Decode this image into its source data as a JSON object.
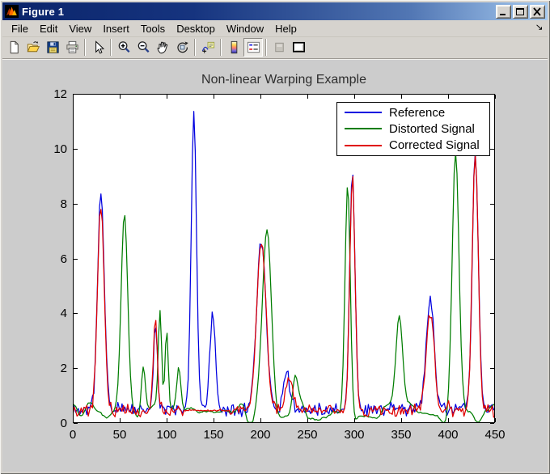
{
  "window": {
    "title": "Figure 1",
    "icon": "matlab-logo-icon",
    "controls": [
      "minimize",
      "maximize",
      "close"
    ]
  },
  "menu_bar": {
    "items": [
      "File",
      "Edit",
      "View",
      "Insert",
      "Tools",
      "Desktop",
      "Window",
      "Help"
    ],
    "corner_arrow": "↘"
  },
  "toolbar": {
    "buttons": [
      {
        "icon": "new-file-icon"
      },
      {
        "icon": "open-file-icon"
      },
      {
        "icon": "save-icon"
      },
      {
        "icon": "print-icon"
      },
      {
        "icon": "pointer-icon"
      },
      {
        "icon": "zoom-in-icon"
      },
      {
        "icon": "zoom-out-icon"
      },
      {
        "icon": "pan-hand-icon"
      },
      {
        "icon": "rotate-3d-icon"
      },
      {
        "icon": "data-cursor-icon"
      },
      {
        "icon": "colorbar-icon"
      },
      {
        "icon": "legend-icon",
        "state": "pressed"
      },
      {
        "icon": "hide-plot-tools-icon",
        "state": "disabled"
      },
      {
        "icon": "dock-figure-icon"
      }
    ]
  },
  "figure": {
    "chart_data": {
      "type": "line",
      "title": "Non-linear Warping Example",
      "xlabel": "",
      "ylabel": "",
      "xlim": [
        0,
        450
      ],
      "ylim": [
        0,
        12
      ],
      "xticks": [
        0,
        50,
        100,
        150,
        200,
        250,
        300,
        350,
        400,
        450
      ],
      "yticks": [
        0,
        2,
        4,
        6,
        8,
        10,
        12
      ],
      "grid": false,
      "background": "#ffffff",
      "legend": {
        "position": "top-right",
        "entries": [
          "Reference",
          "Distorted Signal",
          "Corrected Signal"
        ]
      },
      "peaks_format": "[center_x, apex_y, gaussian_width]",
      "series": [
        {
          "name": "Reference",
          "color": "#0000e0",
          "style": "jagged",
          "baseline": 0.5,
          "noise_amp": 0.28,
          "peaks": [
            [
              30,
              8.4,
              5
            ],
            [
              88,
              3.6,
              3
            ],
            [
              129,
              11.3,
              4
            ],
            [
              149,
              4.05,
              4
            ],
            [
              201,
              6.7,
              7
            ],
            [
              228,
              1.8,
              5
            ],
            [
              298,
              9.1,
              4
            ],
            [
              381,
              4.6,
              6
            ],
            [
              429,
              9.9,
              4.5
            ]
          ]
        },
        {
          "name": "Distorted Signal",
          "color": "#007d00",
          "style": "smooth",
          "baseline": 0.45,
          "noise_amp": 0.3,
          "peaks": [
            [
              55,
              7.8,
              5
            ],
            [
              75,
              2.3,
              3
            ],
            [
              93,
              3.95,
              2.5
            ],
            [
              100,
              3.6,
              2.5
            ],
            [
              113,
              2.0,
              3
            ],
            [
              207,
              7.2,
              7
            ],
            [
              237,
              1.8,
              4
            ],
            [
              293,
              9.1,
              4
            ],
            [
              348,
              3.7,
              5
            ],
            [
              408,
              9.7,
              5
            ]
          ]
        },
        {
          "name": "Corrected Signal",
          "color": "#e00000",
          "style": "jagged",
          "baseline": 0.45,
          "noise_amp": 0.26,
          "peaks": [
            [
              30,
              7.9,
              5
            ],
            [
              88,
              3.9,
              3
            ],
            [
              201,
              6.6,
              7
            ],
            [
              231,
              1.8,
              5
            ],
            [
              298,
              9.1,
              4
            ],
            [
              381,
              4.05,
              6
            ],
            [
              429,
              9.9,
              4.5
            ]
          ],
          "flat_segments": [
            [
              120,
              167,
              0.46
            ]
          ]
        }
      ]
    }
  }
}
